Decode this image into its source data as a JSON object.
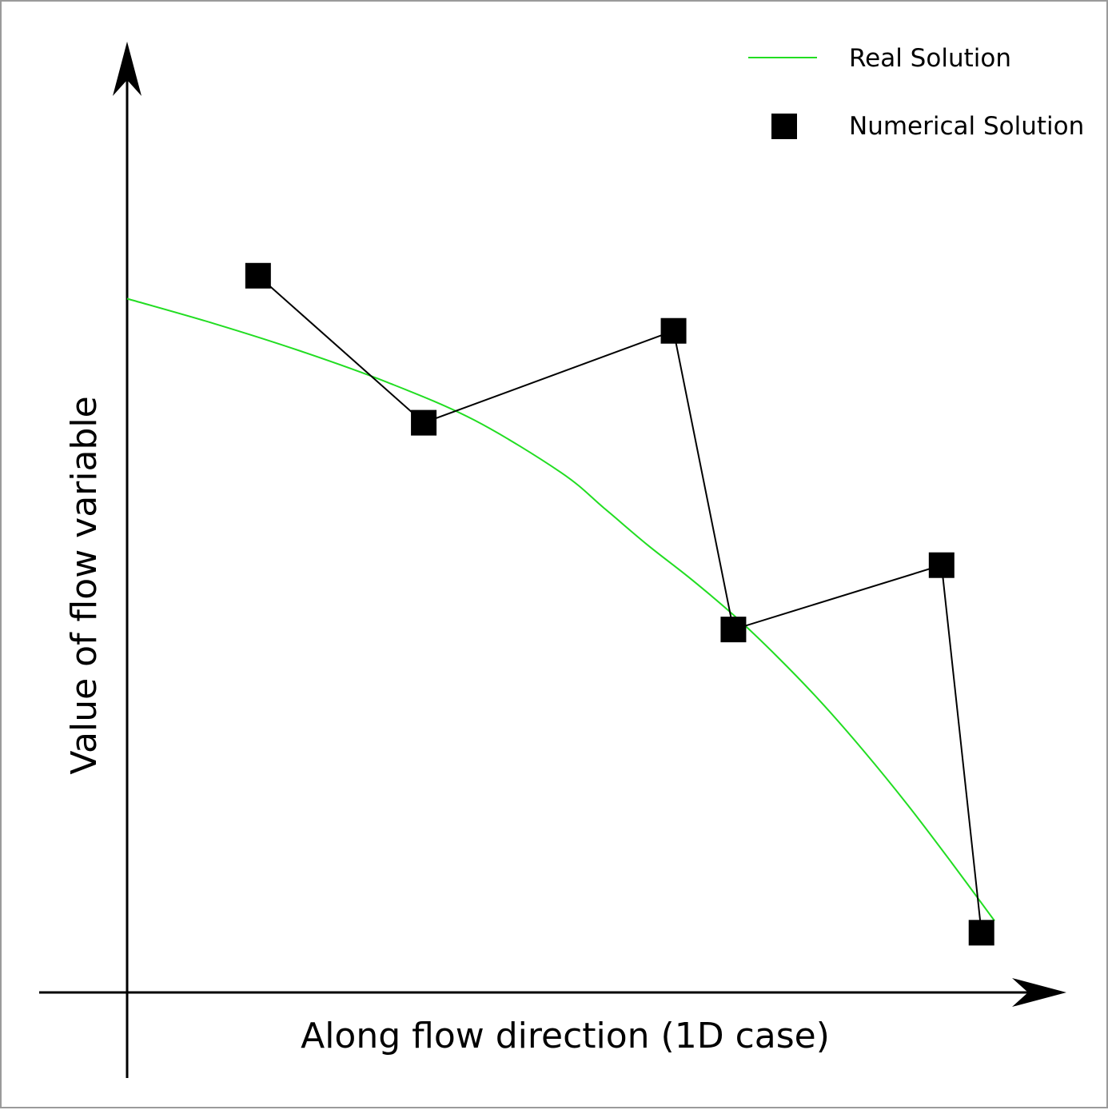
{
  "chart_data": {
    "type": "line",
    "title": "",
    "xlabel": "Along flow direction (1D case)",
    "ylabel": "Value of flow variable",
    "xlim": [
      0,
      1
    ],
    "ylim": [
      0,
      1
    ],
    "grid": false,
    "tick_labels": false,
    "legend_position": "top-right",
    "series": [
      {
        "name": "Real Solution",
        "kind": "line",
        "color": "#22dd22",
        "x": [
          0.0,
          0.1,
          0.2,
          0.3,
          0.4,
          0.5,
          0.55,
          0.6,
          0.65,
          0.7,
          0.75,
          0.8,
          0.85,
          0.9,
          0.95,
          1.0
        ],
        "y": [
          0.755,
          0.728,
          0.698,
          0.664,
          0.623,
          0.566,
          0.527,
          0.487,
          0.45,
          0.41,
          0.365,
          0.316,
          0.262,
          0.204,
          0.142,
          0.078
        ]
      },
      {
        "name": "Numerical Solution",
        "kind": "line+square-markers",
        "color": "#000000",
        "x": [
          0.151,
          0.342,
          0.63,
          0.699,
          0.939,
          0.985
        ],
        "y": [
          0.78,
          0.62,
          0.72,
          0.395,
          0.465,
          0.065
        ]
      }
    ]
  }
}
